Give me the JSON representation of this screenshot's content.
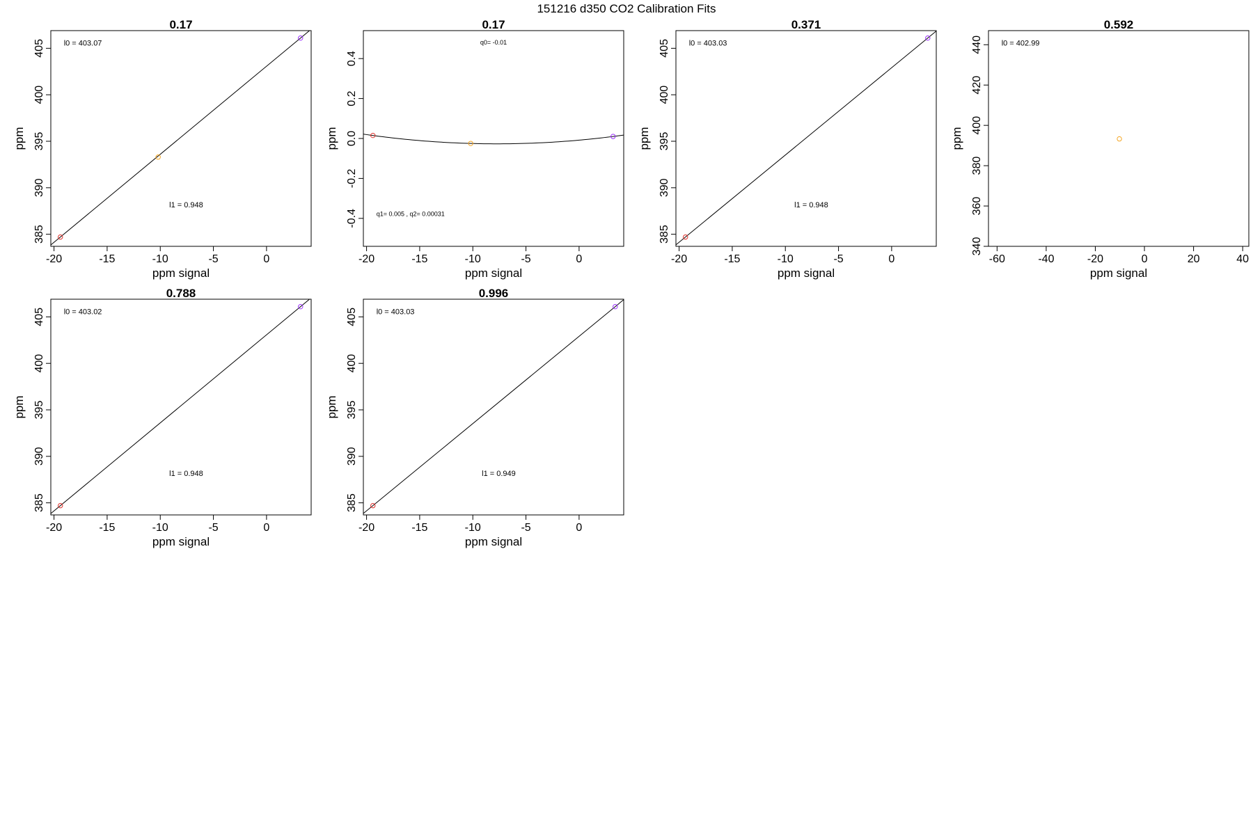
{
  "figure_title": "151216   d350   CO2 Calibration Fits",
  "colors": {
    "background": "#ffffff",
    "axes": "#000000",
    "fit_line": "#000000",
    "point_low": "#e0302a",
    "point_mid": "#f5a623",
    "point_high": "#9b30ff"
  },
  "chart_data": [
    {
      "type": "scatter",
      "title": "0.17",
      "xlabel": "ppm signal",
      "ylabel": "ppm",
      "xlim": [
        -20.3,
        4.2
      ],
      "ylim": [
        383.7,
        406.9
      ],
      "xticks": [
        -20,
        -15,
        -10,
        -5,
        0
      ],
      "yticks": [
        385,
        390,
        395,
        400,
        405
      ],
      "points": [
        {
          "x": -19.4,
          "y": 384.7,
          "color": "#e0302a"
        },
        {
          "x": -10.2,
          "y": 393.3,
          "color": "#f5a623"
        },
        {
          "x": 3.2,
          "y": 406.1,
          "color": "#9b30ff"
        }
      ],
      "fit": {
        "kind": "linear",
        "l0": 403.07,
        "l1": 0.948
      },
      "annotations": [
        "l0 =  403.07",
        "l1 =  0.948"
      ]
    },
    {
      "type": "scatter",
      "title": "0.17",
      "xlabel": "ppm signal",
      "ylabel": "ppm",
      "xlim": [
        -20.3,
        4.2
      ],
      "ylim": [
        -0.54,
        0.54
      ],
      "xticks": [
        -20,
        -15,
        -10,
        -5,
        0
      ],
      "yticks": [
        -0.4,
        -0.2,
        0.0,
        0.2,
        0.4
      ],
      "ytick_labels": [
        "-0.4",
        "-0.2",
        "0.0",
        "0.2",
        "0.4"
      ],
      "points": [
        {
          "x": -19.4,
          "y": 0.015,
          "color": "#e0302a"
        },
        {
          "x": -10.2,
          "y": -0.025,
          "color": "#f5a623"
        },
        {
          "x": 3.2,
          "y": 0.01,
          "color": "#9b30ff"
        }
      ],
      "fit": {
        "kind": "quadratic",
        "q0": -0.01,
        "q1": 0.005,
        "q2": 0.00031
      },
      "annotations": [
        "q0= -0.01",
        "q1= 0.005 , q2= 0.00031"
      ]
    },
    {
      "type": "scatter",
      "title": "0.371",
      "xlabel": "ppm signal",
      "ylabel": "ppm",
      "xlim": [
        -20.3,
        4.2
      ],
      "ylim": [
        383.7,
        406.9
      ],
      "xticks": [
        -20,
        -15,
        -10,
        -5,
        0
      ],
      "yticks": [
        385,
        390,
        395,
        400,
        405
      ],
      "points": [
        {
          "x": -19.4,
          "y": 384.7,
          "color": "#e0302a"
        },
        {
          "x": 3.4,
          "y": 406.1,
          "color": "#9b30ff"
        }
      ],
      "fit": {
        "kind": "linear",
        "l0": 403.03,
        "l1": 0.948
      },
      "annotations": [
        "l0 =  403.03",
        "l1 =  0.948"
      ]
    },
    {
      "type": "scatter",
      "title": "0.592",
      "xlabel": "ppm signal",
      "ylabel": "ppm",
      "xlim": [
        -63.5,
        42.5
      ],
      "ylim": [
        340,
        447
      ],
      "xticks": [
        -60,
        -40,
        -20,
        0,
        20,
        40
      ],
      "yticks": [
        340,
        360,
        380,
        400,
        420,
        440
      ],
      "points": [
        {
          "x": -10.2,
          "y": 393.3,
          "color": "#f5a623"
        }
      ],
      "fit": {
        "kind": "none",
        "l0": 402.99
      },
      "annotations": [
        "l0 =  402.99"
      ]
    },
    {
      "type": "scatter",
      "title": "0.788",
      "xlabel": "ppm signal",
      "ylabel": "ppm",
      "xlim": [
        -20.3,
        4.2
      ],
      "ylim": [
        383.7,
        406.9
      ],
      "xticks": [
        -20,
        -15,
        -10,
        -5,
        0
      ],
      "yticks": [
        385,
        390,
        395,
        400,
        405
      ],
      "points": [
        {
          "x": -19.4,
          "y": 384.7,
          "color": "#e0302a"
        },
        {
          "x": 3.2,
          "y": 406.1,
          "color": "#9b30ff"
        }
      ],
      "fit": {
        "kind": "linear",
        "l0": 403.02,
        "l1": 0.948
      },
      "annotations": [
        "l0 =  403.02",
        "l1 =  0.948"
      ]
    },
    {
      "type": "scatter",
      "title": "0.996",
      "xlabel": "ppm signal",
      "ylabel": "ppm",
      "xlim": [
        -20.3,
        4.2
      ],
      "ylim": [
        383.7,
        406.9
      ],
      "xticks": [
        -20,
        -15,
        -10,
        -5,
        0
      ],
      "yticks": [
        385,
        390,
        395,
        400,
        405
      ],
      "points": [
        {
          "x": -19.4,
          "y": 384.7,
          "color": "#e0302a"
        },
        {
          "x": 3.4,
          "y": 406.1,
          "color": "#9b30ff"
        }
      ],
      "fit": {
        "kind": "linear",
        "l0": 403.03,
        "l1": 0.949
      },
      "annotations": [
        "l0 =  403.03",
        "l1 =  0.949"
      ]
    }
  ]
}
